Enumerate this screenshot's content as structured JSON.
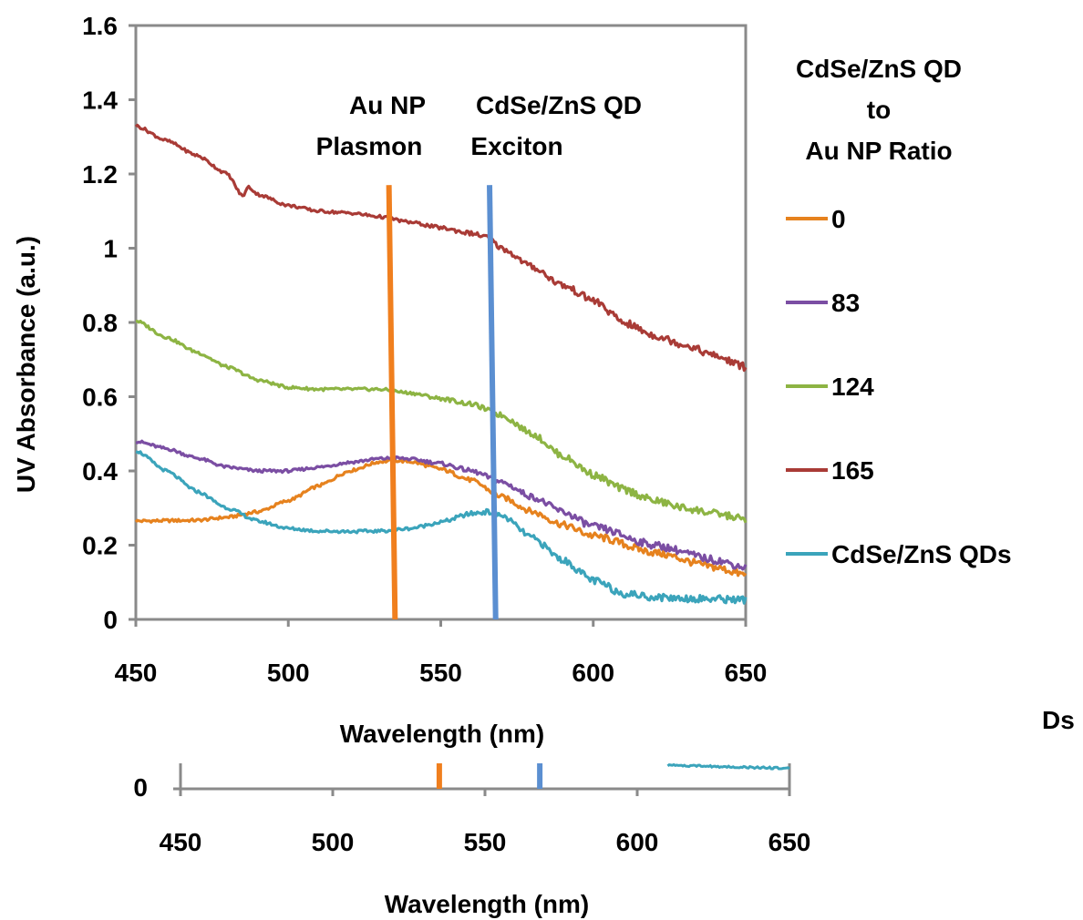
{
  "chart_data": [
    {
      "type": "line",
      "title": "",
      "xlabel": "Wavelength (nm)",
      "ylabel": "UV Absorbance (a.u.)",
      "xlim": [
        450,
        650
      ],
      "ylim": [
        0,
        1.6
      ],
      "xticks": [
        "450",
        "500",
        "550",
        "600",
        "650"
      ],
      "yticks": [
        "0",
        "0.2",
        "0.4",
        "0.6",
        "0.8",
        "1",
        "1.2",
        "1.4",
        "1.6"
      ],
      "grid": false,
      "legend_title": "CdSe/ZnS QD to Au NP Ratio",
      "legend_position": "right",
      "series": [
        {
          "name": "0",
          "color": "#e6821e",
          "x": [
            450,
            470,
            480,
            490,
            500,
            510,
            520,
            530,
            535,
            540,
            550,
            560,
            570,
            580,
            590,
            600,
            620,
            640,
            650
          ],
          "values": [
            0.265,
            0.267,
            0.275,
            0.29,
            0.32,
            0.36,
            0.4,
            0.425,
            0.428,
            0.425,
            0.405,
            0.375,
            0.33,
            0.29,
            0.255,
            0.225,
            0.18,
            0.14,
            0.12
          ]
        },
        {
          "name": "83",
          "color": "#7b4ea3",
          "x": [
            450,
            460,
            470,
            480,
            490,
            500,
            510,
            520,
            530,
            535,
            540,
            550,
            560,
            570,
            580,
            590,
            600,
            620,
            640,
            650
          ],
          "values": [
            0.48,
            0.46,
            0.435,
            0.41,
            0.4,
            0.4,
            0.41,
            0.423,
            0.433,
            0.435,
            0.432,
            0.42,
            0.4,
            0.37,
            0.33,
            0.29,
            0.25,
            0.2,
            0.16,
            0.14
          ]
        },
        {
          "name": "124",
          "color": "#8db443",
          "x": [
            450,
            460,
            470,
            480,
            490,
            500,
            510,
            520,
            530,
            540,
            550,
            560,
            570,
            580,
            590,
            600,
            610,
            620,
            630,
            640,
            650
          ],
          "values": [
            0.805,
            0.76,
            0.72,
            0.68,
            0.645,
            0.625,
            0.62,
            0.62,
            0.62,
            0.61,
            0.595,
            0.58,
            0.55,
            0.5,
            0.44,
            0.39,
            0.35,
            0.32,
            0.3,
            0.285,
            0.27
          ]
        },
        {
          "name": "165",
          "color": "#a93b36",
          "x": [
            450,
            460,
            470,
            480,
            485,
            487,
            490,
            500,
            510,
            520,
            530,
            540,
            550,
            560,
            565,
            570,
            580,
            590,
            600,
            610,
            620,
            630,
            640,
            650
          ],
          "values": [
            1.33,
            1.29,
            1.25,
            1.2,
            1.14,
            1.165,
            1.145,
            1.115,
            1.1,
            1.095,
            1.085,
            1.07,
            1.055,
            1.04,
            1.03,
            1.0,
            0.95,
            0.9,
            0.86,
            0.8,
            0.765,
            0.74,
            0.71,
            0.68
          ]
        },
        {
          "name": "CdSe/ZnS QDs",
          "color": "#3ba4bb",
          "x": [
            450,
            460,
            470,
            480,
            490,
            500,
            510,
            520,
            530,
            540,
            550,
            560,
            565,
            570,
            580,
            590,
            600,
            610,
            620,
            630,
            640,
            650
          ],
          "values": [
            0.455,
            0.4,
            0.345,
            0.3,
            0.265,
            0.245,
            0.238,
            0.237,
            0.238,
            0.245,
            0.262,
            0.285,
            0.29,
            0.28,
            0.22,
            0.16,
            0.105,
            0.07,
            0.06,
            0.057,
            0.055,
            0.053
          ]
        }
      ],
      "reference_lines": [
        {
          "label": "Au NP Plasmon",
          "label_lines": [
            "Au NP",
            "Plasmon"
          ],
          "x_top": 533,
          "x_bottom": 535,
          "y_top": 1.17,
          "color": "#f07f1e"
        },
        {
          "label": "CdSe/ZnS QD Exciton",
          "label_lines": [
            "CdSe/ZnS QD",
            "Exciton"
          ],
          "x_top": 566,
          "x_bottom": 568,
          "y_top": 1.17,
          "color": "#5b8fd1"
        }
      ]
    },
    {
      "type": "line",
      "title": "",
      "xlabel": "Wavelength (nm)",
      "ylabel": "",
      "xlim": [
        450,
        650
      ],
      "xticks": [
        "450",
        "500",
        "550",
        "600",
        "650"
      ],
      "yticks": [
        "0"
      ],
      "grid": false,
      "note": "partially visible duplicate axis below the main chart"
    }
  ],
  "ui": {
    "main_xlabel": "Wavelength (nm)",
    "secondary_xlabel": "Wavelength (nm)",
    "ylabel": "UV Absorbance (a.u.)",
    "legend_title_lines": [
      "CdSe/ZnS QD",
      "to",
      "Au NP Ratio"
    ],
    "legend_items": [
      "0",
      "83",
      "124",
      "165",
      "CdSe/ZnS QDs"
    ],
    "stray_text": "Ds",
    "secondary_ytick": "0"
  }
}
